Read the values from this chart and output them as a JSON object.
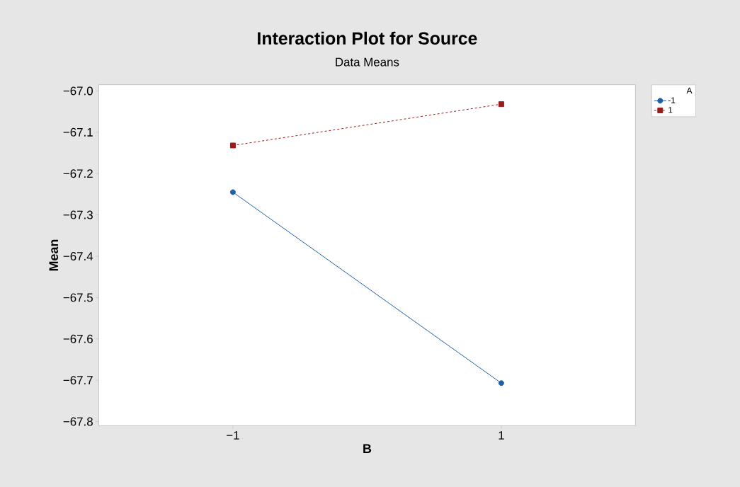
{
  "chart_data": {
    "type": "line",
    "title": "Interaction Plot for Source",
    "subtitle": "Data Means",
    "xlabel": "B",
    "ylabel": "Mean",
    "legend_title": "A",
    "x": [
      -1,
      1
    ],
    "series": [
      {
        "name": "-1",
        "color": "#1f5fa8",
        "values": [
          -67.245,
          -67.707
        ],
        "marker": "circle",
        "line_style": "solid"
      },
      {
        "name": "1",
        "color": "#9b1b1b",
        "values": [
          -67.132,
          -67.032
        ],
        "marker": "square",
        "line_style": "dashed"
      }
    ],
    "xlim": [
      -2,
      2
    ],
    "xticks": [
      {
        "value": -1,
        "label": "−1"
      },
      1
    ],
    "ylim": [
      -67.81,
      -66.985
    ],
    "yticks": [
      {
        "value": -67.0,
        "label": "−67.0"
      },
      {
        "value": -67.1,
        "label": "−67.1"
      },
      {
        "value": -67.2,
        "label": "−67.2"
      },
      {
        "value": -67.3,
        "label": "−67.3"
      },
      {
        "value": -67.4,
        "label": "−67.4"
      },
      {
        "value": -67.5,
        "label": "−67.5"
      },
      {
        "value": -67.6,
        "label": "−67.6"
      },
      {
        "value": -67.7,
        "label": "−67.7"
      },
      {
        "value": -67.8,
        "label": "−67.8"
      }
    ],
    "grid": false,
    "legend": "top right"
  }
}
